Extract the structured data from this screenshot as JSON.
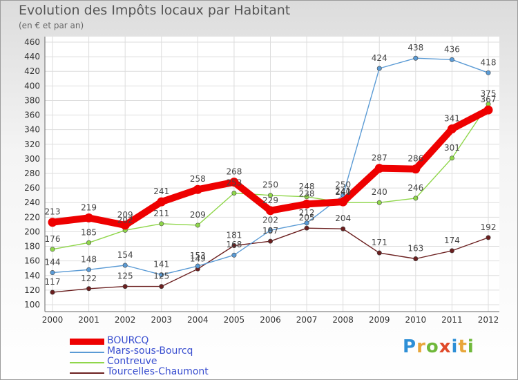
{
  "header": {
    "title": "Evolution des Impôts locaux par Habitant",
    "subtitle": "(en € et par an)"
  },
  "logo": {
    "text": "Proxiti",
    "letters": [
      "P",
      "r",
      "o",
      "x",
      "i",
      "t",
      "i"
    ]
  },
  "chart_data": {
    "type": "line",
    "title": "Evolution des Impôts locaux par Habitant",
    "subtitle": "(en € et par an)",
    "xlabel": "",
    "ylabel": "",
    "ylim": [
      100,
      460
    ],
    "yticks": [
      100,
      120,
      140,
      160,
      180,
      200,
      220,
      240,
      260,
      280,
      300,
      320,
      340,
      360,
      380,
      400,
      420,
      440,
      460
    ],
    "grid": true,
    "legend_position": "bottom-left",
    "categories": [
      "2000",
      "2001",
      "2002",
      "2003",
      "2004",
      "2005",
      "2006",
      "2007",
      "2008",
      "2009",
      "2010",
      "2011",
      "2012"
    ],
    "series": [
      {
        "name": "Tourcelles-Chaumont",
        "color": "#6b1f1f",
        "emphasis": false,
        "values": [
          117,
          122,
          125,
          125,
          149,
          181,
          187,
          205,
          204,
          171,
          163,
          174,
          192
        ]
      },
      {
        "name": "Contreuve",
        "color": "#8fd64a",
        "emphasis": false,
        "values": [
          176,
          185,
          202,
          211,
          209,
          253,
          250,
          248,
          240,
          240,
          246,
          301,
          375
        ]
      },
      {
        "name": "Mars-sous-Bourcq",
        "color": "#5b9bd5",
        "emphasis": false,
        "values": [
          144,
          148,
          154,
          141,
          153,
          168,
          202,
          212,
          250,
          424,
          438,
          436,
          418
        ]
      },
      {
        "name": "BOURCQ",
        "color": "#ee0000",
        "emphasis": true,
        "values": [
          213,
          219,
          209,
          241,
          258,
          268,
          229,
          238,
          241,
          287,
          286,
          341,
          367
        ]
      }
    ],
    "data_labels": [
      [
        "117",
        "122",
        "125",
        "125",
        "149",
        "181",
        "187",
        "205",
        "204",
        "171",
        "163",
        "174",
        "192"
      ],
      [
        "176",
        "185",
        "202",
        "211",
        "209",
        "253",
        "250",
        "248",
        "240",
        "240",
        "246",
        "301",
        "375"
      ],
      [
        "144",
        "148",
        "154",
        "141",
        "153",
        "168",
        "202",
        "212",
        "250",
        "424",
        "438",
        "436",
        "418"
      ],
      [
        "213",
        "219",
        "209",
        "241",
        "258",
        "268",
        "229",
        "238",
        "241",
        "287",
        "286",
        "341",
        "367"
      ]
    ],
    "legend": [
      "BOURCQ",
      "Mars-sous-Bourcq",
      "Contreuve",
      "Tourcelles-Chaumont"
    ]
  }
}
